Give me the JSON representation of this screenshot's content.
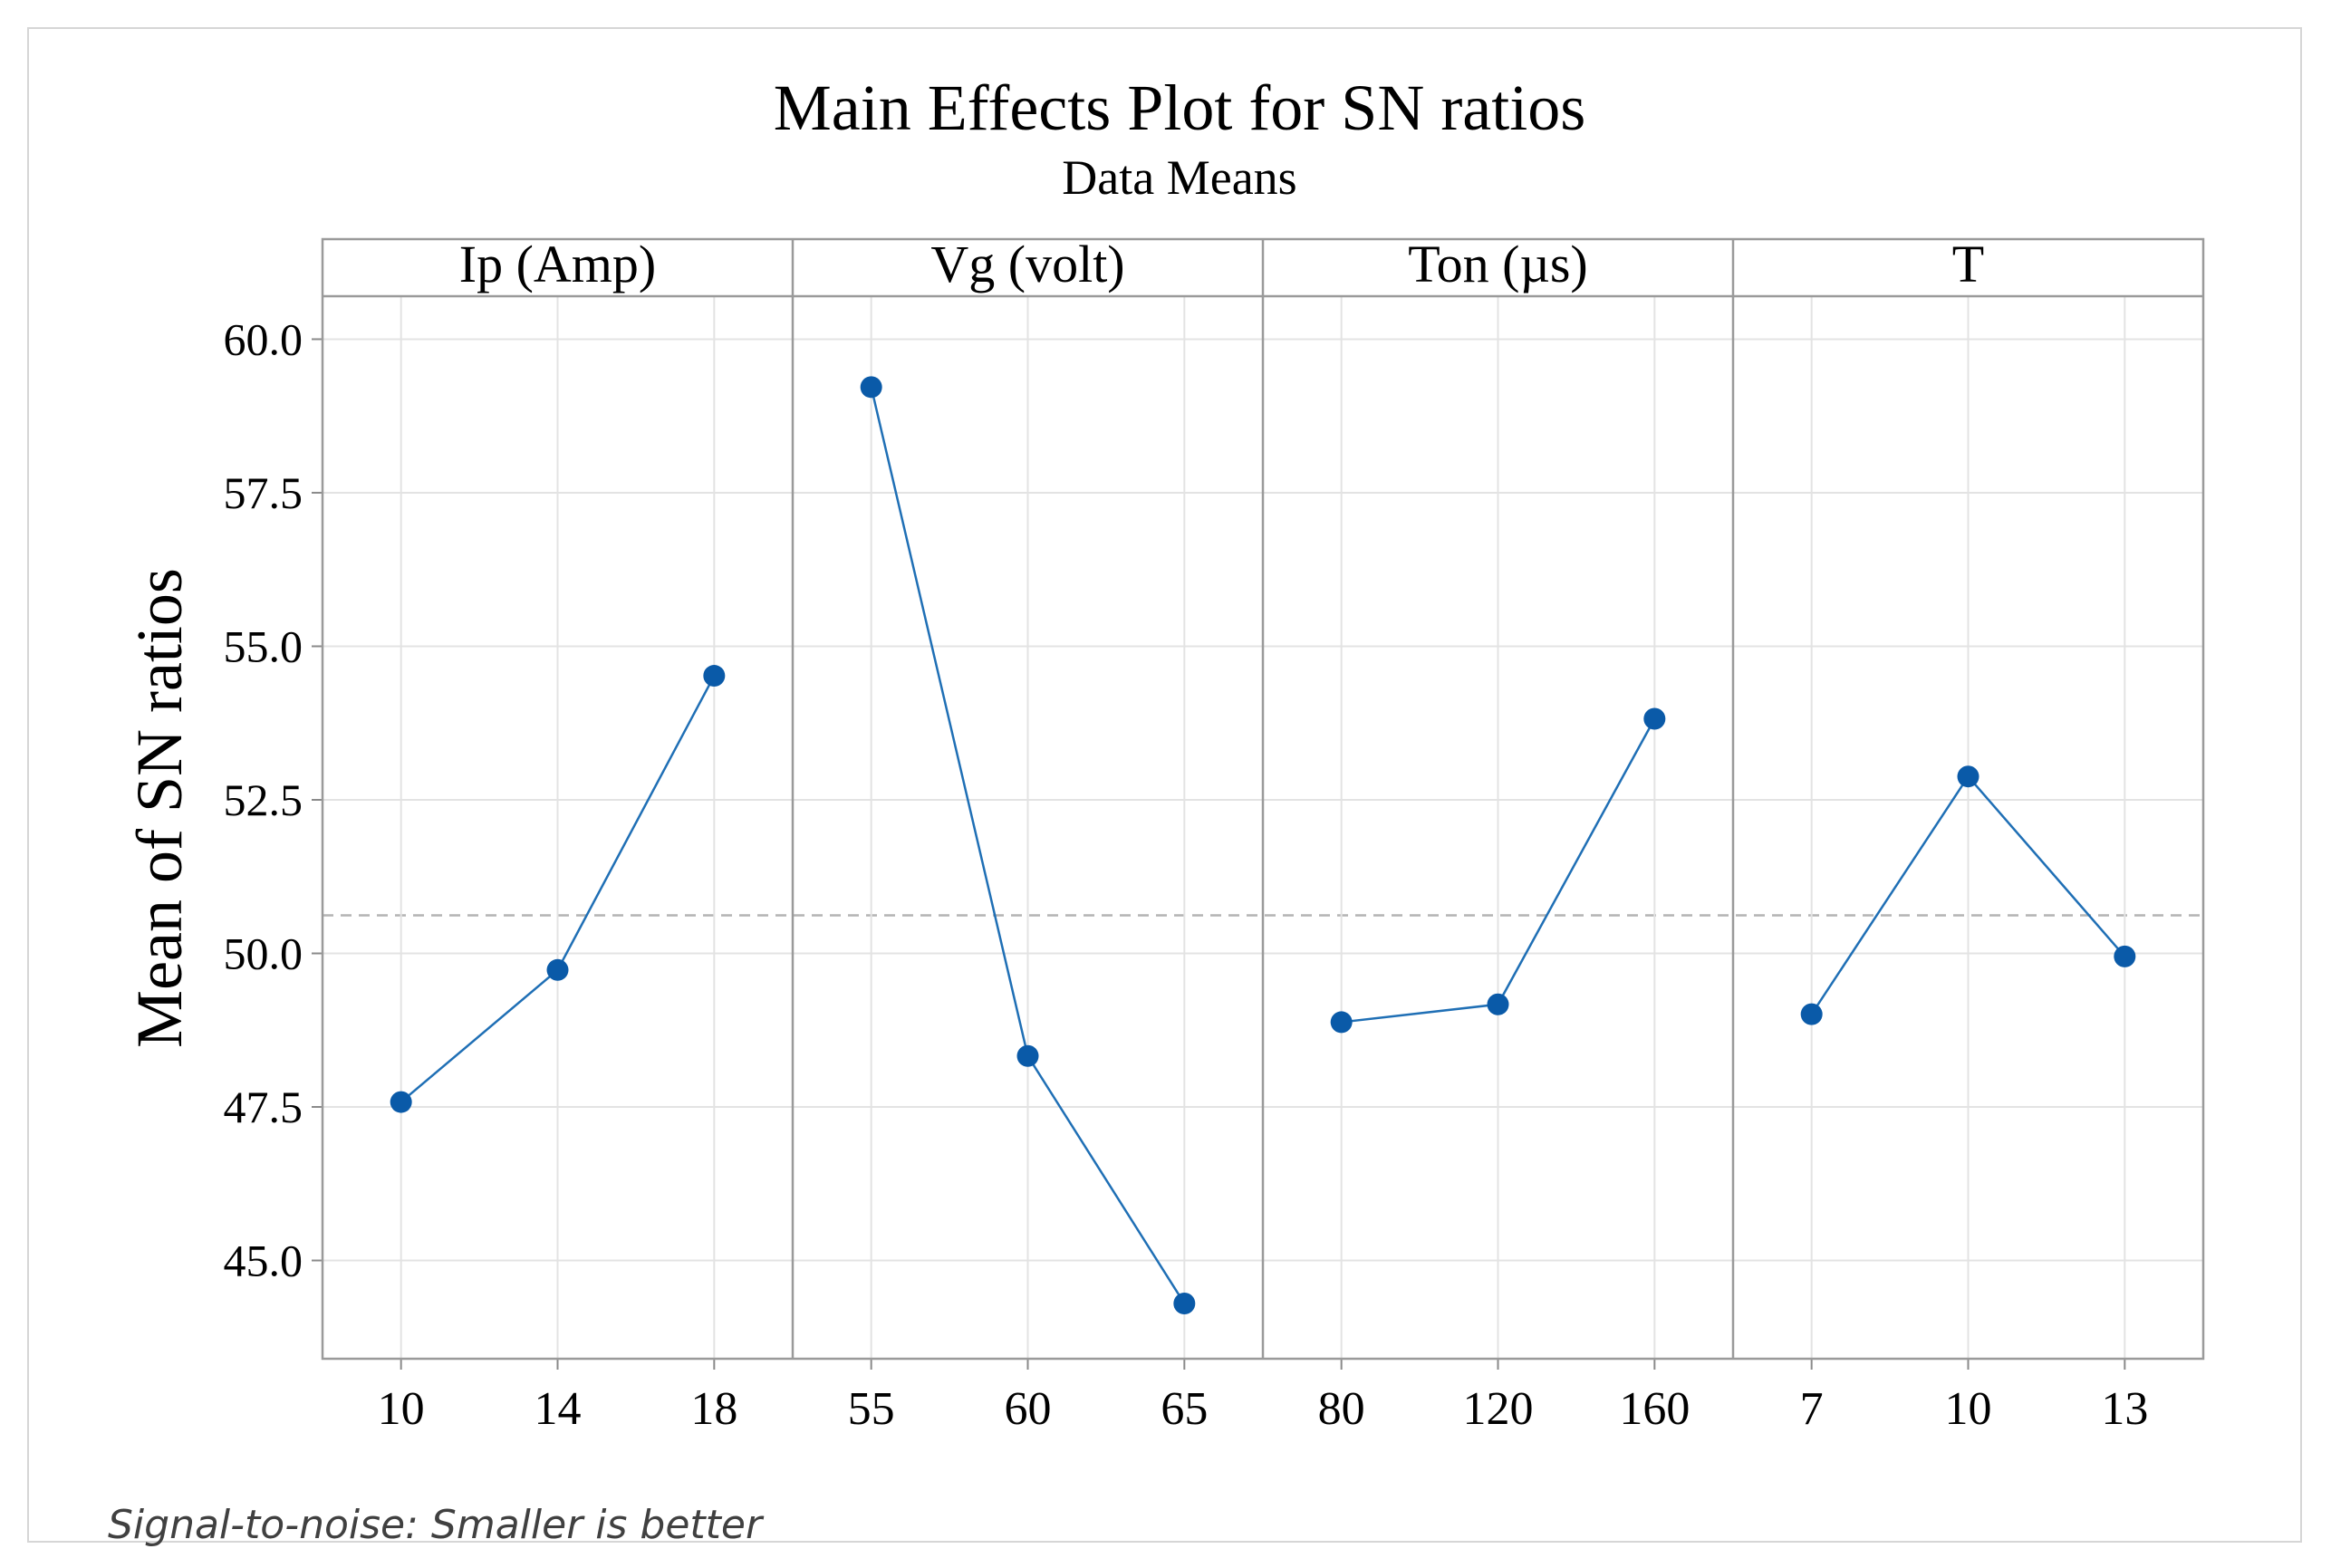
{
  "chart_data": {
    "type": "line",
    "title": "Main Effects Plot for SN ratios",
    "subtitle": "Data Means",
    "ylabel": "Mean of SN ratios",
    "xlabel": "",
    "ylim": [
      43.4,
      60.7
    ],
    "yticks": [
      45.0,
      47.5,
      50.0,
      52.5,
      55.0,
      57.5,
      60.0
    ],
    "ytick_labels": [
      "45.0",
      "47.5",
      "50.0",
      "52.5",
      "55.0",
      "57.5",
      "60.0"
    ],
    "grid": true,
    "reference_line": {
      "value": 50.62,
      "style": "dashed"
    },
    "footnote": "Signal-to-noise: Smaller is better",
    "line_color": "#1f6fb5",
    "marker_color": "#0a5aa8",
    "panels": [
      {
        "name": "Ip (Amp)",
        "levels": [
          "10",
          "14",
          "18"
        ],
        "values": [
          47.58,
          49.73,
          54.52
        ]
      },
      {
        "name": "Vg (volt)",
        "levels": [
          "55",
          "60",
          "65"
        ],
        "values": [
          59.22,
          48.33,
          44.3
        ]
      },
      {
        "name": "Ton (µs)",
        "levels": [
          "80",
          "120",
          "160"
        ],
        "values": [
          48.88,
          49.17,
          53.82
        ]
      },
      {
        "name": "T",
        "levels": [
          "7",
          "10",
          "13"
        ],
        "values": [
          49.01,
          52.88,
          49.95
        ]
      }
    ]
  }
}
